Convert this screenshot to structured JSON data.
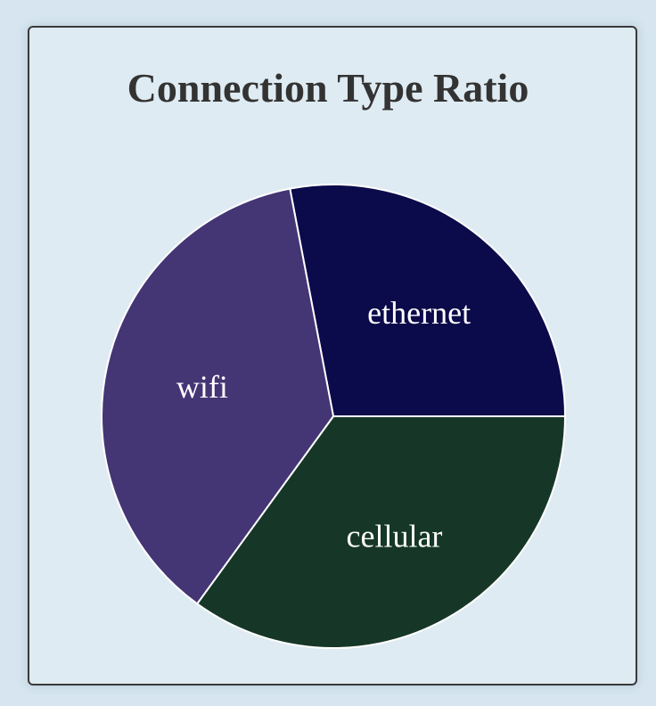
{
  "chart_data": {
    "type": "pie",
    "title": "Connection Type Ratio",
    "categories": [
      "ethernet",
      "cellular",
      "wifi"
    ],
    "values": [
      28,
      35,
      37
    ],
    "colors": [
      "#0b0a4a",
      "#163728",
      "#443575"
    ],
    "start_angle_deg": -90
  }
}
